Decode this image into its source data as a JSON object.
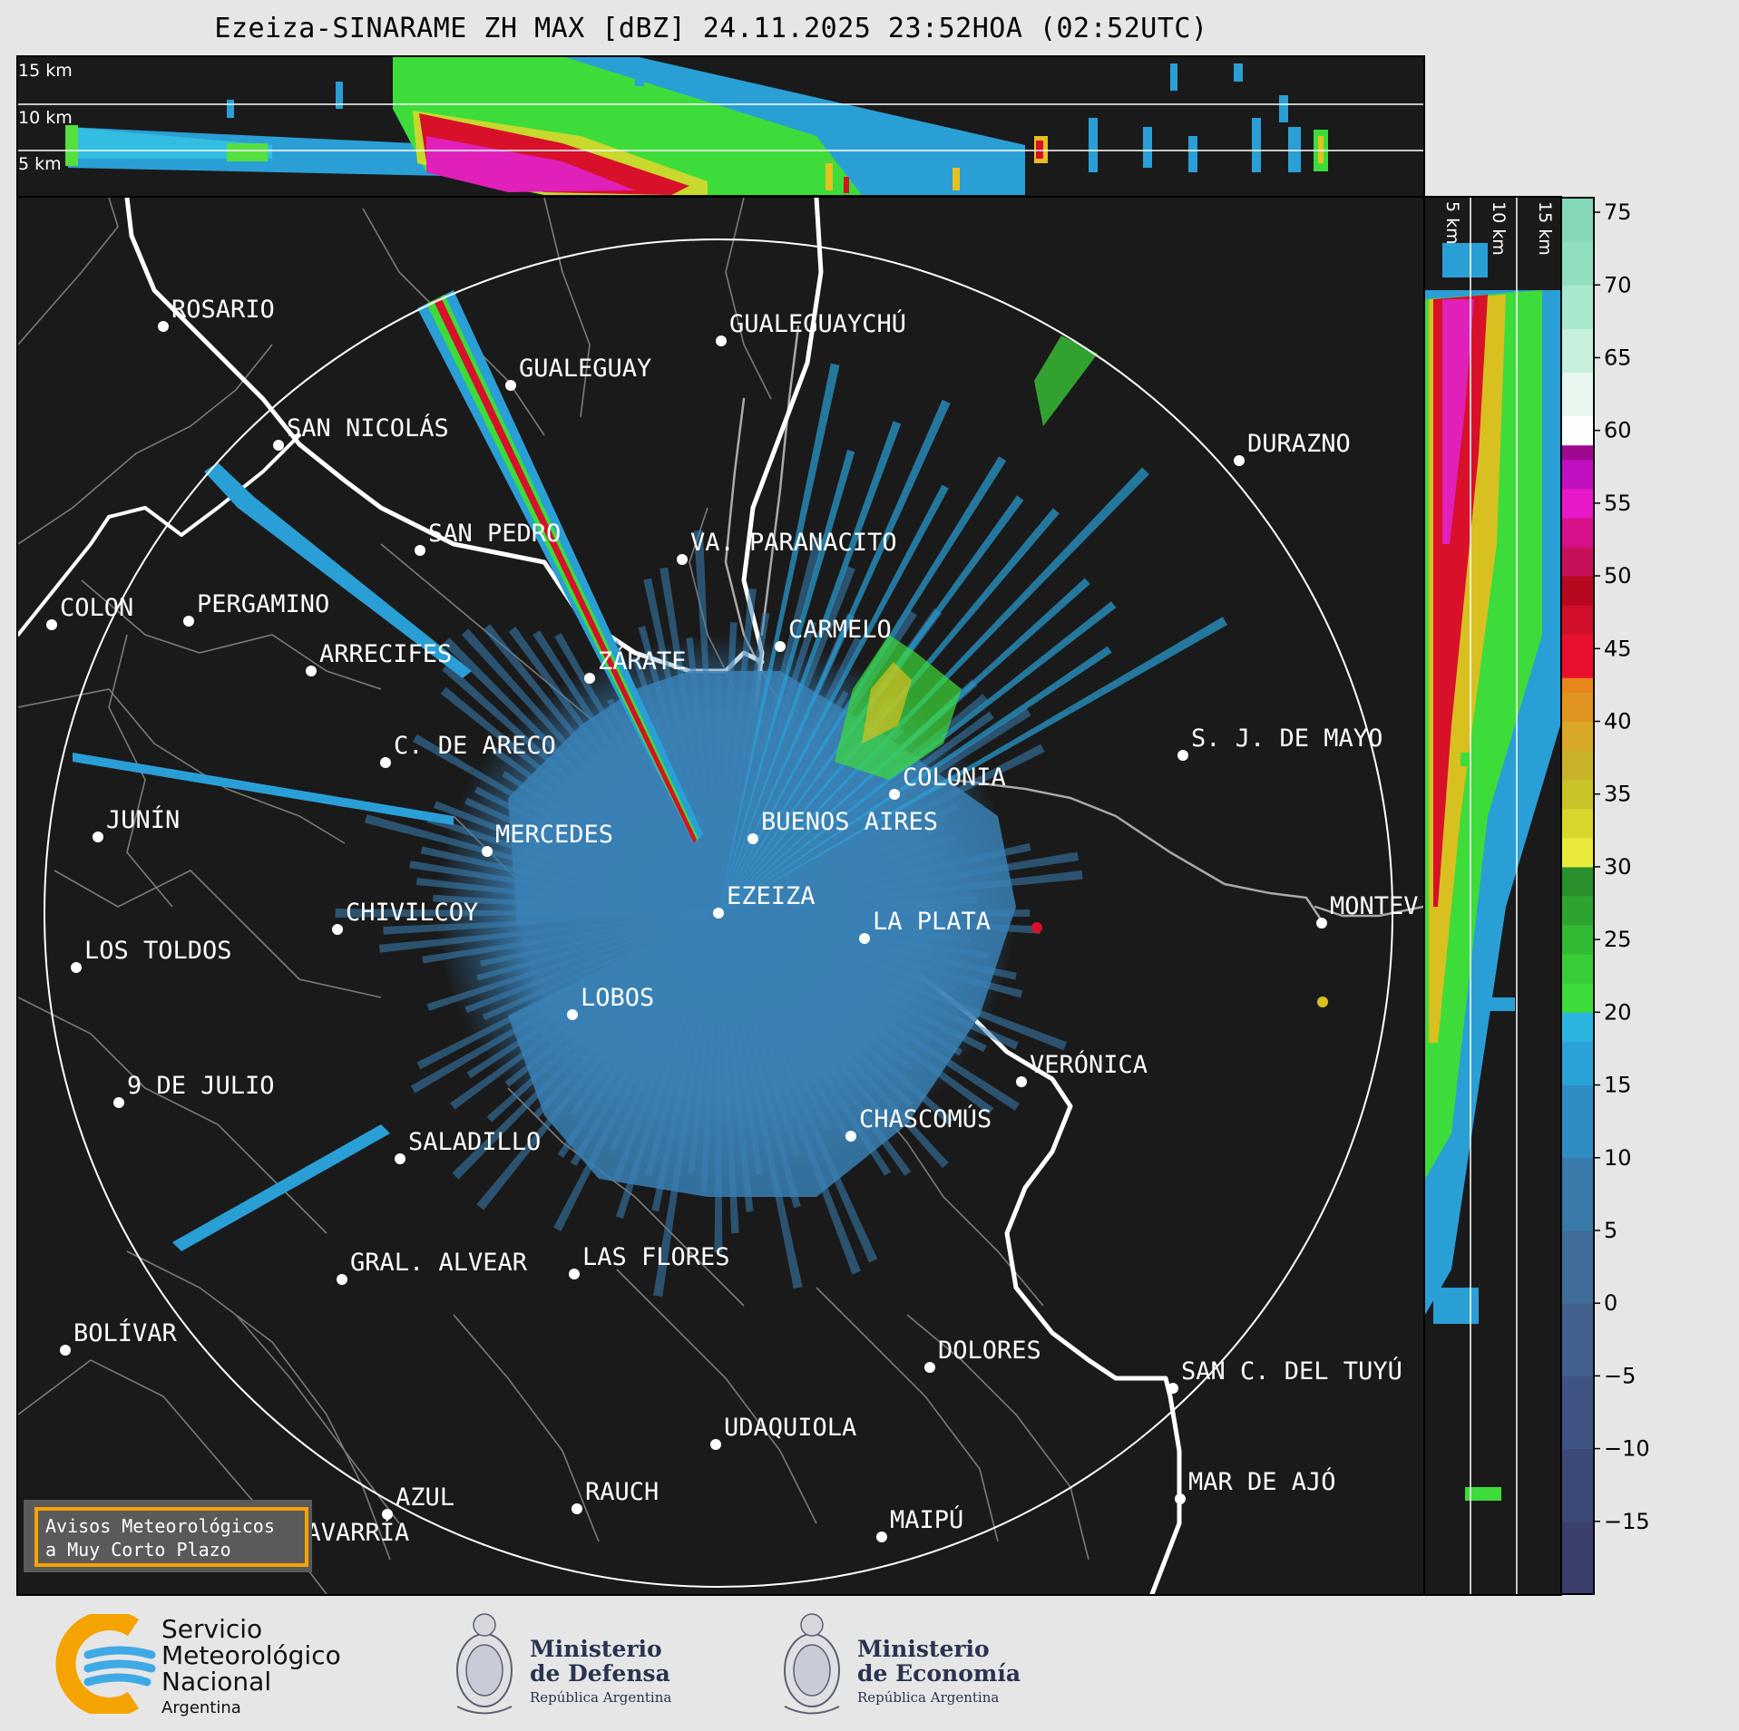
{
  "title": "Ezeiza-SINARAME ZH MAX [dBZ] 24.11.2025 23:52HOA (02:52UTC)",
  "height_labels_top": [
    "15 km",
    "10 km",
    "5 km"
  ],
  "height_labels_side": [
    "5 km",
    "10 km",
    "15 km"
  ],
  "colorbar": {
    "ticks": [
      "75",
      "70",
      "65",
      "60",
      "55",
      "50",
      "45",
      "40",
      "35",
      "30",
      "25",
      "20",
      "15",
      "10",
      "5",
      "0",
      "−5",
      "−10",
      "−15"
    ],
    "range": [
      -20,
      76
    ]
  },
  "cities": [
    {
      "name": "ROSARIO"
    },
    {
      "name": "GUALEGUAYCHÚ"
    },
    {
      "name": "GUALEGUAY"
    },
    {
      "name": "SAN NICOLÁS"
    },
    {
      "name": "DURAZNO"
    },
    {
      "name": "SAN PEDRO"
    },
    {
      "name": "VA. PARANACITO"
    },
    {
      "name": "COLON"
    },
    {
      "name": "PERGAMINO"
    },
    {
      "name": "CARMELO"
    },
    {
      "name": "ARRECIFES"
    },
    {
      "name": "ZÁRATE"
    },
    {
      "name": "S. J. DE MAYO"
    },
    {
      "name": "C. DE ARECO"
    },
    {
      "name": "COLONIA"
    },
    {
      "name": "JUNÍN"
    },
    {
      "name": "BUENOS AIRES"
    },
    {
      "name": "MERCEDES"
    },
    {
      "name": "EZEIZA"
    },
    {
      "name": "MONTEV"
    },
    {
      "name": "CHIVILCOY"
    },
    {
      "name": "LA PLATA"
    },
    {
      "name": "LOS TOLDOS"
    },
    {
      "name": "LOBOS"
    },
    {
      "name": "VERÓNICA"
    },
    {
      "name": "9 DE JULIO"
    },
    {
      "name": "CHASCOMÚS"
    },
    {
      "name": "SALADILLO"
    },
    {
      "name": "GRAL. ALVEAR"
    },
    {
      "name": "LAS FLORES"
    },
    {
      "name": "BOLÍVAR"
    },
    {
      "name": "DOLORES"
    },
    {
      "name": "SAN C. DEL TUYÚ"
    },
    {
      "name": "UDAQUIOLA"
    },
    {
      "name": "MAR DE AJÓ"
    },
    {
      "name": "RAUCH"
    },
    {
      "name": "AZUL"
    },
    {
      "name": "OLAVARRÍA"
    },
    {
      "name": "MAIPÚ"
    }
  ],
  "aviso": {
    "line1": "Avisos Meteorológicos",
    "line2": "a Muy Corto Plazo"
  },
  "logos": {
    "smn": {
      "l1": "Servicio",
      "l2": "Meteorológico",
      "l3": "Nacional",
      "l4": "Argentina"
    },
    "defensa": {
      "l1": "Ministerio",
      "l2": "de Defensa",
      "l3": "República Argentina"
    },
    "economia": {
      "l1": "Ministerio",
      "l2": "de Economía",
      "l3": "República Argentina"
    }
  }
}
